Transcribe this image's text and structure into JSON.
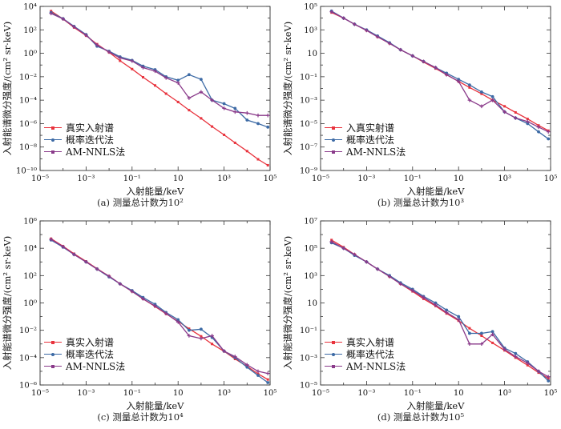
{
  "figure": {
    "colors": {
      "true": "#e8323c",
      "prob": "#3c6aa5",
      "nnls": "#8a3a8a"
    },
    "legend": [
      "真实入射谱",
      "概率迭代法",
      "AM-NNLS法"
    ],
    "legend_alt_true": "入真实射谱"
  },
  "chart_data": [
    {
      "type": "line",
      "caption": "(a) 测量总计数为10²",
      "xlabel": "入射能量/keV",
      "ylabel": "入射能谱微分强度/(cm² sr·keV)",
      "x_scale": "log",
      "y_scale": "log",
      "xlim": [
        1e-05,
        100000.0
      ],
      "ylim": [
        1e-10,
        10000.0
      ],
      "x_ticks": [
        "10⁻⁵",
        "10⁻³",
        "10⁻¹",
        "10",
        "10³",
        "10⁵"
      ],
      "y_ticks": [
        "10⁻¹⁰",
        "10⁻⁸",
        "10⁻⁶",
        "10⁻⁴",
        "10⁻²",
        "10⁰",
        "10²",
        "10⁴"
      ],
      "legend_labels": [
        "真实入射谱",
        "概率迭代法",
        "AM-NNLS法"
      ],
      "series": [
        {
          "name": "真实入射谱",
          "color": "#e8323c",
          "marker": "star",
          "x": [
            3e-05,
            0.0001,
            0.0003,
            0.001,
            0.003,
            0.01,
            0.03,
            0.1,
            0.3,
            1,
            3,
            10,
            30,
            100,
            300,
            1000,
            3000,
            10000,
            30000,
            80000
          ],
          "y": [
            4000,
            850,
            160,
            32,
            6,
            1.2,
            0.23,
            0.045,
            0.009,
            0.0018,
            0.00036,
            7e-05,
            1.4e-05,
            2.8e-06,
            5.6e-07,
            1.1e-07,
            2.3e-08,
            4.5e-09,
            9e-10,
            2.8e-10
          ]
        },
        {
          "name": "概率迭代法",
          "color": "#3c6aa5",
          "marker": "circle",
          "x": [
            3e-05,
            0.0001,
            0.0003,
            0.001,
            0.003,
            0.01,
            0.03,
            0.1,
            0.3,
            1,
            3,
            10,
            30,
            100,
            300,
            1000,
            3000,
            10000,
            30000,
            80000
          ],
          "y": [
            3000,
            900,
            200,
            40,
            4,
            1.5,
            0.5,
            0.25,
            0.08,
            0.04,
            0.01,
            0.005,
            0.015,
            0.006,
            0.0001,
            5e-05,
            2e-05,
            2e-06,
            1e-06,
            5e-07
          ]
        },
        {
          "name": "AM-NNLS法",
          "color": "#8a3a8a",
          "marker": "cross",
          "x": [
            3e-05,
            0.0001,
            0.0003,
            0.001,
            0.003,
            0.01,
            0.03,
            0.1,
            0.3,
            1,
            3,
            10,
            30,
            100,
            300,
            1000,
            3000,
            10000,
            30000,
            80000
          ],
          "y": [
            2500,
            850,
            180,
            35,
            5,
            1.3,
            0.4,
            0.22,
            0.06,
            0.03,
            0.008,
            0.003,
            0.00015,
            0.0005,
            0.0001,
            2e-05,
            1e-05,
            8e-06,
            5e-06,
            5e-06
          ]
        }
      ]
    },
    {
      "type": "line",
      "caption": "(b) 测量总计数为10³",
      "xlabel": "入射能量/keV",
      "ylabel": "入射能谱微分强度/(cm² sr·keV)",
      "x_scale": "log",
      "y_scale": "log",
      "xlim": [
        1e-05,
        100000.0
      ],
      "ylim": [
        1e-09,
        100000.0
      ],
      "x_ticks": [
        "10⁻⁵",
        "10⁻³",
        "10⁻¹",
        "10",
        "10³",
        "10⁵"
      ],
      "y_ticks": [
        "10⁻⁹",
        "10⁻⁷",
        "10⁻⁵",
        "10⁻³",
        "10⁻¹",
        "10",
        "10³",
        "10⁵"
      ],
      "legend_labels": [
        "入真实射谱",
        "概率迭代法",
        "AM-NNLS法"
      ],
      "series": [
        {
          "name": "入真实射谱",
          "color": "#e8323c",
          "marker": "star",
          "x": [
            3e-05,
            0.0001,
            0.0003,
            0.001,
            0.003,
            0.01,
            0.03,
            0.1,
            0.3,
            1,
            3,
            10,
            30,
            100,
            300,
            1000,
            3000,
            10000,
            30000,
            80000
          ],
          "y": [
            30000,
            10000,
            3000,
            900,
            250,
            70,
            20,
            6,
            1.8,
            0.5,
            0.15,
            0.04,
            0.012,
            0.0035,
            0.001,
            0.0003,
            9e-05,
            2.5e-05,
            7e-06,
            2.5e-06
          ]
        },
        {
          "name": "概率迭代法",
          "color": "#3c6aa5",
          "marker": "circle",
          "x": [
            3e-05,
            0.0001,
            0.0003,
            0.001,
            0.003,
            0.01,
            0.03,
            0.1,
            0.3,
            1,
            3,
            10,
            30,
            100,
            300,
            1000,
            3000,
            10000,
            30000,
            80000
          ],
          "y": [
            40000,
            10000,
            3000,
            1000,
            300,
            80,
            20,
            6,
            2,
            0.6,
            0.2,
            0.06,
            0.02,
            0.005,
            0.002,
            0.0001,
            3e-05,
            1e-05,
            2e-06,
            5e-07
          ]
        },
        {
          "name": "AM-NNLS法",
          "color": "#8a3a8a",
          "marker": "cross",
          "x": [
            3e-05,
            0.0001,
            0.0003,
            0.001,
            0.003,
            0.01,
            0.03,
            0.1,
            0.3,
            1,
            3,
            10,
            30,
            100,
            300,
            1000,
            3000,
            10000,
            30000,
            80000
          ],
          "y": [
            35000,
            10000,
            3000,
            900,
            260,
            70,
            20,
            6,
            2,
            0.6,
            0.15,
            0.04,
            0.001,
            0.0003,
            0.001,
            0.0001,
            3e-05,
            1.5e-05,
            5e-06,
            2e-06
          ]
        }
      ]
    },
    {
      "type": "line",
      "caption": "(c) 测量总计数为10⁴",
      "xlabel": "入射能量/keV",
      "ylabel": "入射能谱微分强度/(cm² sr·keV)",
      "x_scale": "log",
      "y_scale": "log",
      "xlim": [
        1e-05,
        100000.0
      ],
      "ylim": [
        1e-06,
        1000000.0
      ],
      "x_ticks": [
        "10⁻⁵",
        "10⁻³",
        "10⁻¹",
        "10",
        "10³",
        "10⁵"
      ],
      "y_ticks": [
        "10⁻⁶",
        "10⁻⁴",
        "10⁻²",
        "10⁰",
        "10²",
        "10⁴",
        "10⁶"
      ],
      "legend_labels": [
        "真实入射谱",
        "概率迭代法",
        "AM-NNLS法"
      ],
      "series": [
        {
          "name": "真实入射谱",
          "color": "#e8323c",
          "marker": "star",
          "x": [
            3e-05,
            0.0001,
            0.0003,
            0.001,
            0.003,
            0.01,
            0.03,
            0.1,
            0.3,
            1,
            3,
            10,
            30,
            100,
            300,
            1000,
            3000,
            10000,
            30000,
            80000
          ],
          "y": [
            50000,
            14000,
            4000,
            1100,
            320,
            90,
            25,
            7,
            2,
            0.55,
            0.16,
            0.045,
            0.013,
            0.0036,
            0.001,
            0.00029,
            8e-05,
            2.3e-05,
            6.5e-06,
            2.5e-06
          ]
        },
        {
          "name": "概率迭代法",
          "color": "#3c6aa5",
          "marker": "circle",
          "x": [
            3e-05,
            0.0001,
            0.0003,
            0.001,
            0.003,
            0.01,
            0.03,
            0.1,
            0.3,
            1,
            3,
            10,
            30,
            100,
            300,
            1000,
            3000,
            10000,
            30000,
            80000
          ],
          "y": [
            40000,
            12000,
            3500,
            1000,
            300,
            80,
            25,
            8,
            2.5,
            0.8,
            0.2,
            0.06,
            0.01,
            0.012,
            0.003,
            0.0003,
            0.0001,
            2e-05,
            5e-06,
            1.5e-06
          ]
        },
        {
          "name": "AM-NNLS法",
          "color": "#8a3a8a",
          "marker": "cross",
          "x": [
            3e-05,
            0.0001,
            0.0003,
            0.001,
            0.003,
            0.01,
            0.03,
            0.1,
            0.3,
            1,
            3,
            10,
            30,
            100,
            300,
            1000,
            3000,
            10000,
            30000,
            80000
          ],
          "y": [
            45000,
            13000,
            3500,
            1000,
            300,
            90,
            25,
            7,
            2,
            0.6,
            0.17,
            0.04,
            0.004,
            0.0025,
            0.004,
            0.0003,
            0.00012,
            3e-05,
            1e-05,
            7e-06
          ]
        }
      ]
    },
    {
      "type": "line",
      "caption": "(d) 测量总计数为10⁵",
      "xlabel": "入射能量/keV",
      "ylabel": "入射能谱微分强度/(cm² sr·keV)",
      "x_scale": "log",
      "y_scale": "log",
      "xlim": [
        1e-05,
        100000.0
      ],
      "ylim": [
        1e-05,
        10000000.0
      ],
      "x_ticks": [
        "10⁻⁵",
        "10⁻³",
        "10⁻¹",
        "10",
        "10³",
        "10⁵"
      ],
      "y_ticks": [
        "10⁻⁵",
        "10⁻³",
        "10⁻¹",
        "10",
        "10³",
        "10⁵",
        "10⁷"
      ],
      "legend_labels": [
        "真实入射谱",
        "概率迭代法",
        "AM-NNLS法"
      ],
      "series": [
        {
          "name": "真实入射谱",
          "color": "#e8323c",
          "marker": "star",
          "x": [
            3e-05,
            0.0001,
            0.0003,
            0.001,
            0.003,
            0.01,
            0.03,
            0.1,
            0.3,
            1,
            3,
            10,
            30,
            100,
            300,
            1000,
            3000,
            10000,
            30000,
            80000
          ],
          "y": [
            400000,
            120000,
            35000,
            10000,
            3000,
            850,
            250,
            70,
            20,
            6,
            1.7,
            0.5,
            0.14,
            0.04,
            0.012,
            0.0034,
            0.001,
            0.00028,
            8e-05,
            3e-05
          ]
        },
        {
          "name": "概率迭代法",
          "color": "#3c6aa5",
          "marker": "circle",
          "x": [
            3e-05,
            0.0001,
            0.0003,
            0.001,
            0.003,
            0.01,
            0.03,
            0.1,
            0.3,
            1,
            3,
            10,
            30,
            100,
            300,
            1000,
            3000,
            10000,
            30000,
            80000
          ],
          "y": [
            250000,
            100000,
            30000,
            10000,
            3000,
            1000,
            300,
            100,
            30,
            10,
            3,
            1,
            0.06,
            0.06,
            0.08,
            0.005,
            0.002,
            0.0005,
            0.0001,
            2e-05
          ]
        },
        {
          "name": "AM-NNLS法",
          "color": "#8a3a8a",
          "marker": "cross",
          "x": [
            3e-05,
            0.0001,
            0.0003,
            0.001,
            0.003,
            0.01,
            0.03,
            0.1,
            0.3,
            1,
            3,
            10,
            30,
            100,
            300,
            1000,
            3000,
            10000,
            30000,
            80000
          ],
          "y": [
            300000,
            100000,
            35000,
            10000,
            3000,
            850,
            250,
            80,
            25,
            7,
            2,
            0.6,
            0.01,
            0.01,
            0.05,
            0.004,
            0.0012,
            0.0004,
            0.0001,
            4e-05
          ]
        }
      ]
    }
  ]
}
